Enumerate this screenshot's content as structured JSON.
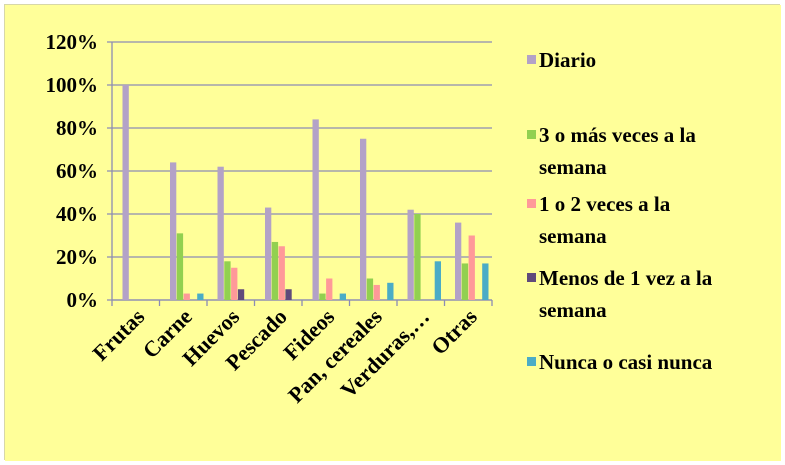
{
  "chart_data": {
    "type": "bar",
    "title": "",
    "xlabel": "",
    "ylabel": "",
    "ylim": [
      0,
      1.2
    ],
    "yticks": [
      "0%",
      "20%",
      "40%",
      "60%",
      "80%",
      "100%",
      "120%"
    ],
    "categories": [
      "Frutas",
      "Carne",
      "Huevos",
      "Pescado",
      "Fideos",
      "Pan, cereales",
      "Verduras,…",
      "Otras"
    ],
    "series": [
      {
        "name": "Diario",
        "color": "#b3a2c7",
        "values": [
          1.0,
          0.64,
          0.62,
          0.43,
          0.84,
          0.75,
          0.42,
          0.36
        ]
      },
      {
        "name": "3 o más veces a la semana",
        "color": "#92d050",
        "values": [
          0,
          0.31,
          0.18,
          0.27,
          0.03,
          0.1,
          0.4,
          0.17
        ]
      },
      {
        "name": "1 o 2 veces a la semana",
        "color": "#ff9999",
        "values": [
          0,
          0.03,
          0.15,
          0.25,
          0.1,
          0.07,
          0,
          0.3
        ]
      },
      {
        "name": "Menos de 1 vez a la semana",
        "color": "#604a7b",
        "values": [
          0,
          0,
          0.05,
          0.05,
          0,
          0,
          0,
          0
        ]
      },
      {
        "name": "Nunca o casi nunca",
        "color": "#4bacc6",
        "values": [
          0,
          0.03,
          0,
          0,
          0.03,
          0.08,
          0.18,
          0.17
        ]
      }
    ],
    "legend_labels": [
      [
        "Diario"
      ],
      [
        "3 o más veces a la",
        "semana"
      ],
      [
        "1 o 2 veces a la",
        "semana"
      ],
      [
        "Menos de 1 vez a la",
        "semana"
      ],
      [
        "Nunca o casi nunca"
      ]
    ],
    "legend_position": "right",
    "grid": true,
    "background": "#ffff99",
    "grid_color": "#8c8cb4"
  }
}
